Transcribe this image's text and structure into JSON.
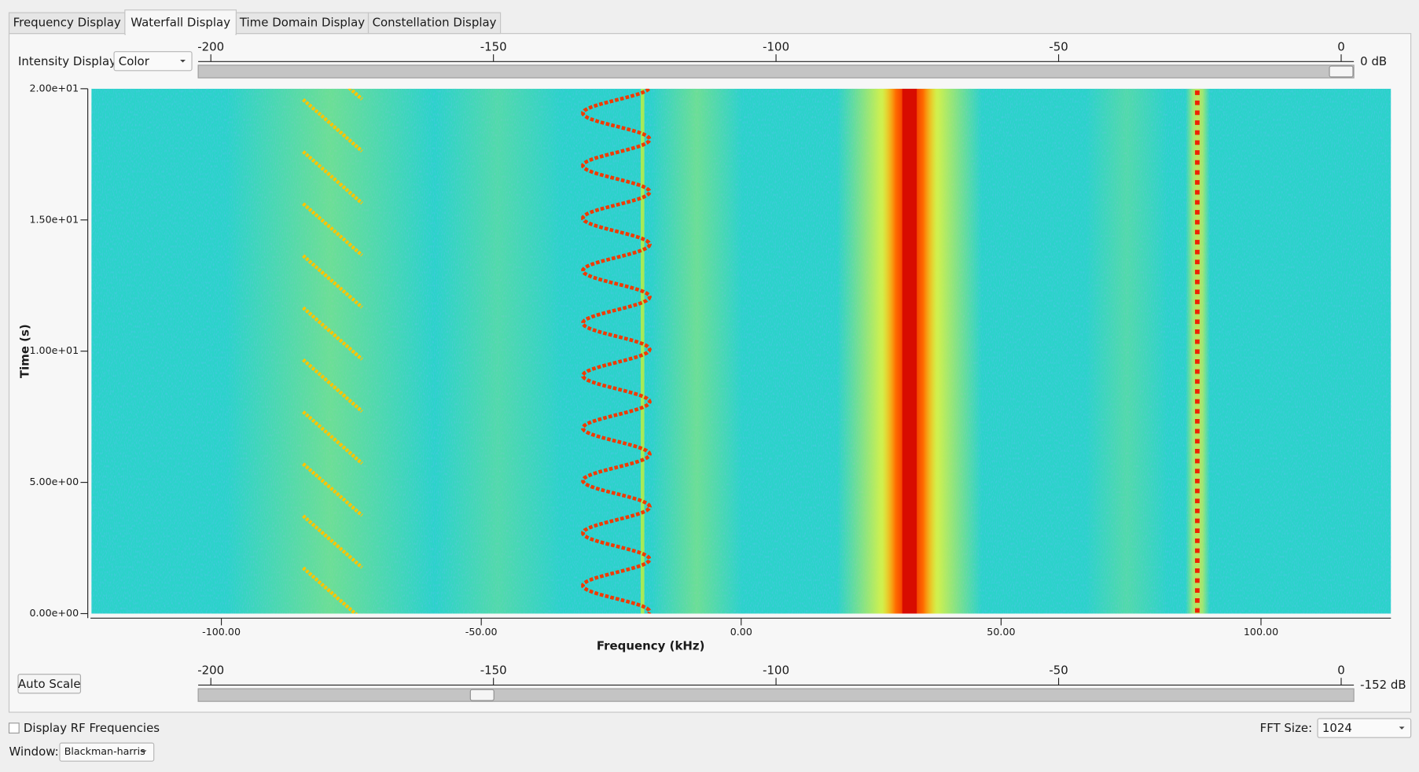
{
  "tabs": [
    "Frequency Display",
    "Waterfall Display",
    "Time Domain Display",
    "Constellation Display"
  ],
  "active_tab": 1,
  "intensity": {
    "label": "Intensity Display:",
    "value": "Color"
  },
  "top_slider": {
    "ticks": [
      -200,
      -150,
      -100,
      -50,
      0
    ],
    "value": 0,
    "value_label": "0 dB"
  },
  "bottom_slider": {
    "ticks": [
      -200,
      -150,
      -100,
      -50,
      0
    ],
    "value": -152,
    "value_label": "-152 dB"
  },
  "waterfall": {
    "ylabel": "Time (s)",
    "xlabel": "Frequency (kHz)",
    "xlim": [
      -125,
      125
    ],
    "ylim": [
      0,
      20
    ],
    "xticks": [
      {
        "value": -100,
        "label": "-100.00"
      },
      {
        "value": -50,
        "label": "-50.00"
      },
      {
        "value": 0,
        "label": "0.00"
      },
      {
        "value": 50,
        "label": "50.00"
      },
      {
        "value": 100,
        "label": "100.00"
      }
    ],
    "yticks": [
      {
        "value": 0,
        "label": "0.00e+00"
      },
      {
        "value": 5,
        "label": "5.00e+00"
      },
      {
        "value": 10,
        "label": "1.00e+01"
      },
      {
        "value": 15,
        "label": "1.50e+01"
      },
      {
        "value": 20,
        "label": "2.00e+01"
      }
    ]
  },
  "auto_scale": "Auto Scale",
  "rf_checkbox": "Display RF Frequencies",
  "fft": {
    "label": "FFT Size:",
    "value": "1024"
  },
  "window": {
    "label": "Window:",
    "value": "Blackman-harris"
  }
}
